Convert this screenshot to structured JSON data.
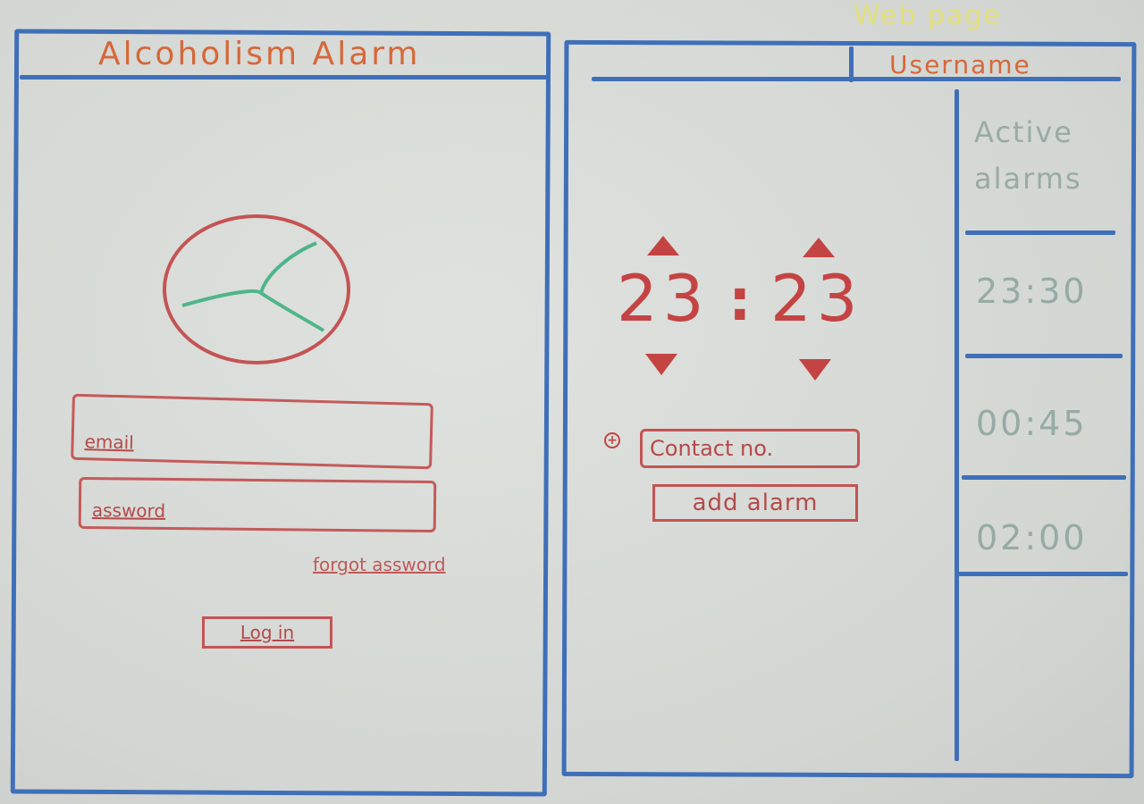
{
  "sheet_label": "Web page",
  "login_screen": {
    "title": "Alcoholism Alarm",
    "email_placeholder": "email",
    "password_placeholder": "assword",
    "forgot_password_label": "forgot assword",
    "login_button_label": "Log in"
  },
  "alarm_screen": {
    "username_label": "Username",
    "hours": "23",
    "minutes": "23",
    "separator": ":",
    "contact_placeholder": "Contact no.",
    "add_alarm_label": "add alarm",
    "sidebar": {
      "heading_line1": "Active",
      "heading_line2": "alarms",
      "alarms": [
        "23:30",
        "00:45",
        "02:00"
      ]
    }
  },
  "colors": {
    "frame_blue": "#3f6fb8",
    "marker_red": "#c44444",
    "title_orange": "#d6683a",
    "logo_green": "#4fb58a",
    "sidebar_gray": "#9aaaa6"
  },
  "icons": [
    "logo-icon",
    "up-arrow-icon",
    "down-arrow-icon",
    "plus-icon"
  ]
}
